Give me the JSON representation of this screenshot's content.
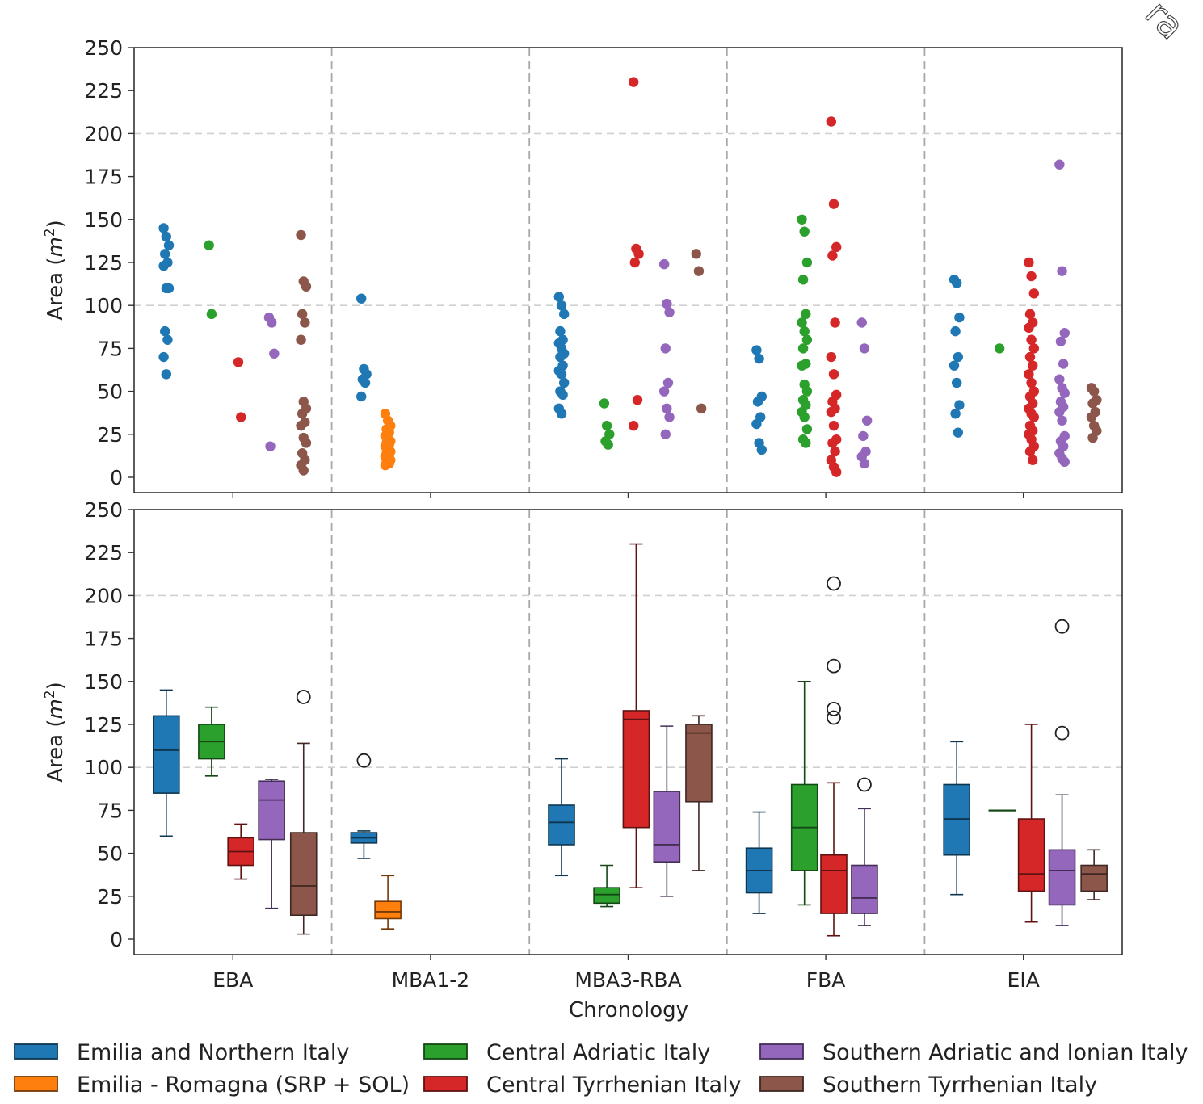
{
  "watermark_text": "ra",
  "colors": {
    "Emilia and Northern Italy": "#1f77b4",
    "Emilia - Romagna (SRP + SOL)": "#ff7f0e",
    "Central Adriatic Italy": "#2ca02c",
    "Central Tyrrhenian Italy": "#d62728",
    "Southern Adriatic and Ionian Italy": "#9467bd",
    "Southern Tyrrhenian Italy": "#8c564b"
  },
  "chart_data": [
    {
      "type": "scatter",
      "panel": "top",
      "title": "",
      "xlabel": "",
      "ylabel": "Area (m²)",
      "ylabel_main": "Area (",
      "ylabel_italic": "m",
      "ylabel_sup": "2",
      "ylabel_close": ")",
      "ylim": [
        -8,
        250
      ],
      "yticks": [
        "0",
        "25",
        "50",
        "75",
        "100",
        "125",
        "150",
        "175",
        "200",
        "225",
        "250"
      ],
      "categories": [
        "EBA",
        "MBA1-2",
        "MBA3-RBA",
        "FBA",
        "EIA"
      ],
      "grid_y": true,
      "series": [
        {
          "name": "Emilia and Northern Italy",
          "points": {
            "EBA": [
              145,
              140,
              135,
              130,
              125,
              123,
              110,
              110,
              85,
              80,
              70,
              60
            ],
            "MBA1-2": [
              104,
              63,
              60,
              57,
              55,
              47
            ],
            "MBA3-RBA": [
              105,
              100,
              95,
              85,
              80,
              78,
              75,
              72,
              70,
              65,
              62,
              60,
              55,
              50,
              48,
              40,
              37
            ],
            "FBA": [
              74,
              69,
              47,
              44,
              35,
              31,
              20,
              16
            ],
            "EIA": [
              115,
              113,
              93,
              85,
              70,
              65,
              55,
              42,
              37,
              26
            ]
          }
        },
        {
          "name": "Emilia - Romagna (SRP + SOL)",
          "points": {
            "MBA1-2": [
              37,
              33,
              30,
              28,
              26,
              24,
              22,
              21,
              20,
              19,
              18,
              16,
              15,
              14,
              13,
              12,
              11,
              10,
              9,
              8,
              7
            ]
          }
        },
        {
          "name": "Central Adriatic Italy",
          "points": {
            "EBA": [
              135,
              95
            ],
            "MBA3-RBA": [
              43,
              30,
              25,
              21,
              19
            ],
            "FBA": [
              150,
              143,
              125,
              115,
              95,
              90,
              85,
              80,
              75,
              66,
              65,
              54,
              50,
              45,
              42,
              38,
              35,
              28,
              22,
              20
            ],
            "EIA": [
              75
            ]
          }
        },
        {
          "name": "Central Tyrrhenian Italy",
          "points": {
            "EBA": [
              67,
              35
            ],
            "MBA3-RBA": [
              230,
              133,
              130,
              125,
              45,
              30
            ],
            "FBA": [
              207,
              159,
              134,
              129,
              90,
              70,
              60,
              48,
              44,
              40,
              38,
              30,
              22,
              20,
              15,
              10,
              6,
              3
            ],
            "EIA": [
              125,
              117,
              107,
              95,
              90,
              87,
              80,
              75,
              70,
              65,
              60,
              55,
              50,
              47,
              43,
              40,
              37,
              35,
              30,
              27,
              25,
              22,
              18,
              15,
              10
            ]
          }
        },
        {
          "name": "Southern Adriatic and Ionian Italy",
          "points": {
            "EBA": [
              93,
              90,
              72,
              18
            ],
            "MBA3-RBA": [
              124,
              101,
              96,
              75,
              55,
              50,
              40,
              35,
              25
            ],
            "FBA": [
              90,
              75,
              33,
              24,
              15,
              12,
              8
            ],
            "EIA": [
              182,
              120,
              84,
              79,
              66,
              57,
              52,
              49,
              44,
              41,
              38,
              33,
              24,
              21,
              18,
              14,
              11,
              9
            ]
          }
        },
        {
          "name": "Southern Tyrrhenian Italy",
          "points": {
            "EBA": [
              141,
              114,
              111,
              95,
              90,
              80,
              44,
              40,
              37,
              32,
              30,
              23,
              20,
              14,
              10,
              7,
              4
            ],
            "MBA3-RBA": [
              130,
              120,
              40
            ],
            "EIA": [
              52,
              50,
              45,
              43,
              38,
              35,
              30,
              27,
              23
            ]
          }
        }
      ]
    },
    {
      "type": "box",
      "panel": "bottom",
      "title": "",
      "xlabel": "Chronology",
      "ylabel": "Area (m²)",
      "ylabel_main": "Area (",
      "ylabel_italic": "m",
      "ylabel_sup": "2",
      "ylabel_close": ")",
      "ylim": [
        -8,
        250
      ],
      "yticks": [
        "0",
        "25",
        "50",
        "75",
        "100",
        "125",
        "150",
        "175",
        "200",
        "225",
        "250"
      ],
      "categories": [
        "EBA",
        "MBA1-2",
        "MBA3-RBA",
        "FBA",
        "EIA"
      ],
      "grid_y": true,
      "boxes": [
        {
          "category": "EBA",
          "series": "Emilia and Northern Italy",
          "whisker_low": 60,
          "q1": 85,
          "median": 110,
          "q3": 130,
          "whisker_high": 145,
          "outliers": []
        },
        {
          "category": "EBA",
          "series": "Central Adriatic Italy",
          "whisker_low": 95,
          "q1": 105,
          "median": 115,
          "q3": 125,
          "whisker_high": 135,
          "outliers": []
        },
        {
          "category": "EBA",
          "series": "Central Tyrrhenian Italy",
          "whisker_low": 35,
          "q1": 43,
          "median": 51,
          "q3": 59,
          "whisker_high": 67,
          "outliers": []
        },
        {
          "category": "EBA",
          "series": "Southern Adriatic and Ionian Italy",
          "whisker_low": 18,
          "q1": 58,
          "median": 81,
          "q3": 92,
          "whisker_high": 93,
          "outliers": []
        },
        {
          "category": "EBA",
          "series": "Southern Tyrrhenian Italy",
          "whisker_low": 3,
          "q1": 14,
          "median": 31,
          "q3": 62,
          "whisker_high": 114,
          "outliers": [
            141
          ]
        },
        {
          "category": "MBA1-2",
          "series": "Emilia and Northern Italy",
          "whisker_low": 47,
          "q1": 56,
          "median": 59,
          "q3": 62,
          "whisker_high": 63,
          "outliers": [
            104
          ]
        },
        {
          "category": "MBA1-2",
          "series": "Emilia - Romagna (SRP + SOL)",
          "whisker_low": 6,
          "q1": 12,
          "median": 16,
          "q3": 22,
          "whisker_high": 37,
          "outliers": []
        },
        {
          "category": "MBA3-RBA",
          "series": "Emilia and Northern Italy",
          "whisker_low": 37,
          "q1": 55,
          "median": 68,
          "q3": 78,
          "whisker_high": 105,
          "outliers": []
        },
        {
          "category": "MBA3-RBA",
          "series": "Central Adriatic Italy",
          "whisker_low": 19,
          "q1": 21,
          "median": 26,
          "q3": 30,
          "whisker_high": 43,
          "outliers": []
        },
        {
          "category": "MBA3-RBA",
          "series": "Central Tyrrhenian Italy",
          "whisker_low": 30,
          "q1": 65,
          "median": 128,
          "q3": 133,
          "whisker_high": 230,
          "outliers": []
        },
        {
          "category": "MBA3-RBA",
          "series": "Southern Adriatic and Ionian Italy",
          "whisker_low": 25,
          "q1": 45,
          "median": 55,
          "q3": 86,
          "whisker_high": 124,
          "outliers": []
        },
        {
          "category": "MBA3-RBA",
          "series": "Southern Tyrrhenian Italy",
          "whisker_low": 40,
          "q1": 80,
          "median": 120,
          "q3": 125,
          "whisker_high": 130,
          "outliers": []
        },
        {
          "category": "FBA",
          "series": "Emilia and Northern Italy",
          "whisker_low": 15,
          "q1": 27,
          "median": 40,
          "q3": 53,
          "whisker_high": 74,
          "outliers": []
        },
        {
          "category": "FBA",
          "series": "Central Adriatic Italy",
          "whisker_low": 20,
          "q1": 40,
          "median": 65,
          "q3": 90,
          "whisker_high": 150,
          "outliers": []
        },
        {
          "category": "FBA",
          "series": "Central Tyrrhenian Italy",
          "whisker_low": 2,
          "q1": 15,
          "median": 40,
          "q3": 49,
          "whisker_high": 91,
          "outliers": [
            207,
            159,
            134,
            129
          ]
        },
        {
          "category": "FBA",
          "series": "Southern Adriatic and Ionian Italy",
          "whisker_low": 8,
          "q1": 15,
          "median": 24,
          "q3": 43,
          "whisker_high": 76,
          "outliers": [
            90
          ]
        },
        {
          "category": "EIA",
          "series": "Emilia and Northern Italy",
          "whisker_low": 26,
          "q1": 49,
          "median": 70,
          "q3": 90,
          "whisker_high": 115,
          "outliers": []
        },
        {
          "category": "EIA",
          "series": "Central Adriatic Italy",
          "whisker_low": 75,
          "q1": 75,
          "median": 75,
          "q3": 75,
          "whisker_high": 75,
          "outliers": []
        },
        {
          "category": "EIA",
          "series": "Central Tyrrhenian Italy",
          "whisker_low": 10,
          "q1": 28,
          "median": 38,
          "q3": 70,
          "whisker_high": 125,
          "outliers": []
        },
        {
          "category": "EIA",
          "series": "Southern Adriatic and Ionian Italy",
          "whisker_low": 8,
          "q1": 20,
          "median": 40,
          "q3": 52,
          "whisker_high": 84,
          "outliers": [
            120,
            182
          ]
        },
        {
          "category": "EIA",
          "series": "Southern Tyrrhenian Italy",
          "whisker_low": 23,
          "q1": 28,
          "median": 38,
          "q3": 43,
          "whisker_high": 52,
          "outliers": []
        }
      ]
    }
  ],
  "legend": {
    "placement": "bottom",
    "entries": [
      "Emilia and Northern Italy",
      "Emilia - Romagna (SRP + SOL)",
      "Central Adriatic Italy",
      "Central Tyrrhenian Italy",
      "Southern Adriatic and Ionian Italy",
      "Southern Tyrrhenian Italy"
    ]
  }
}
